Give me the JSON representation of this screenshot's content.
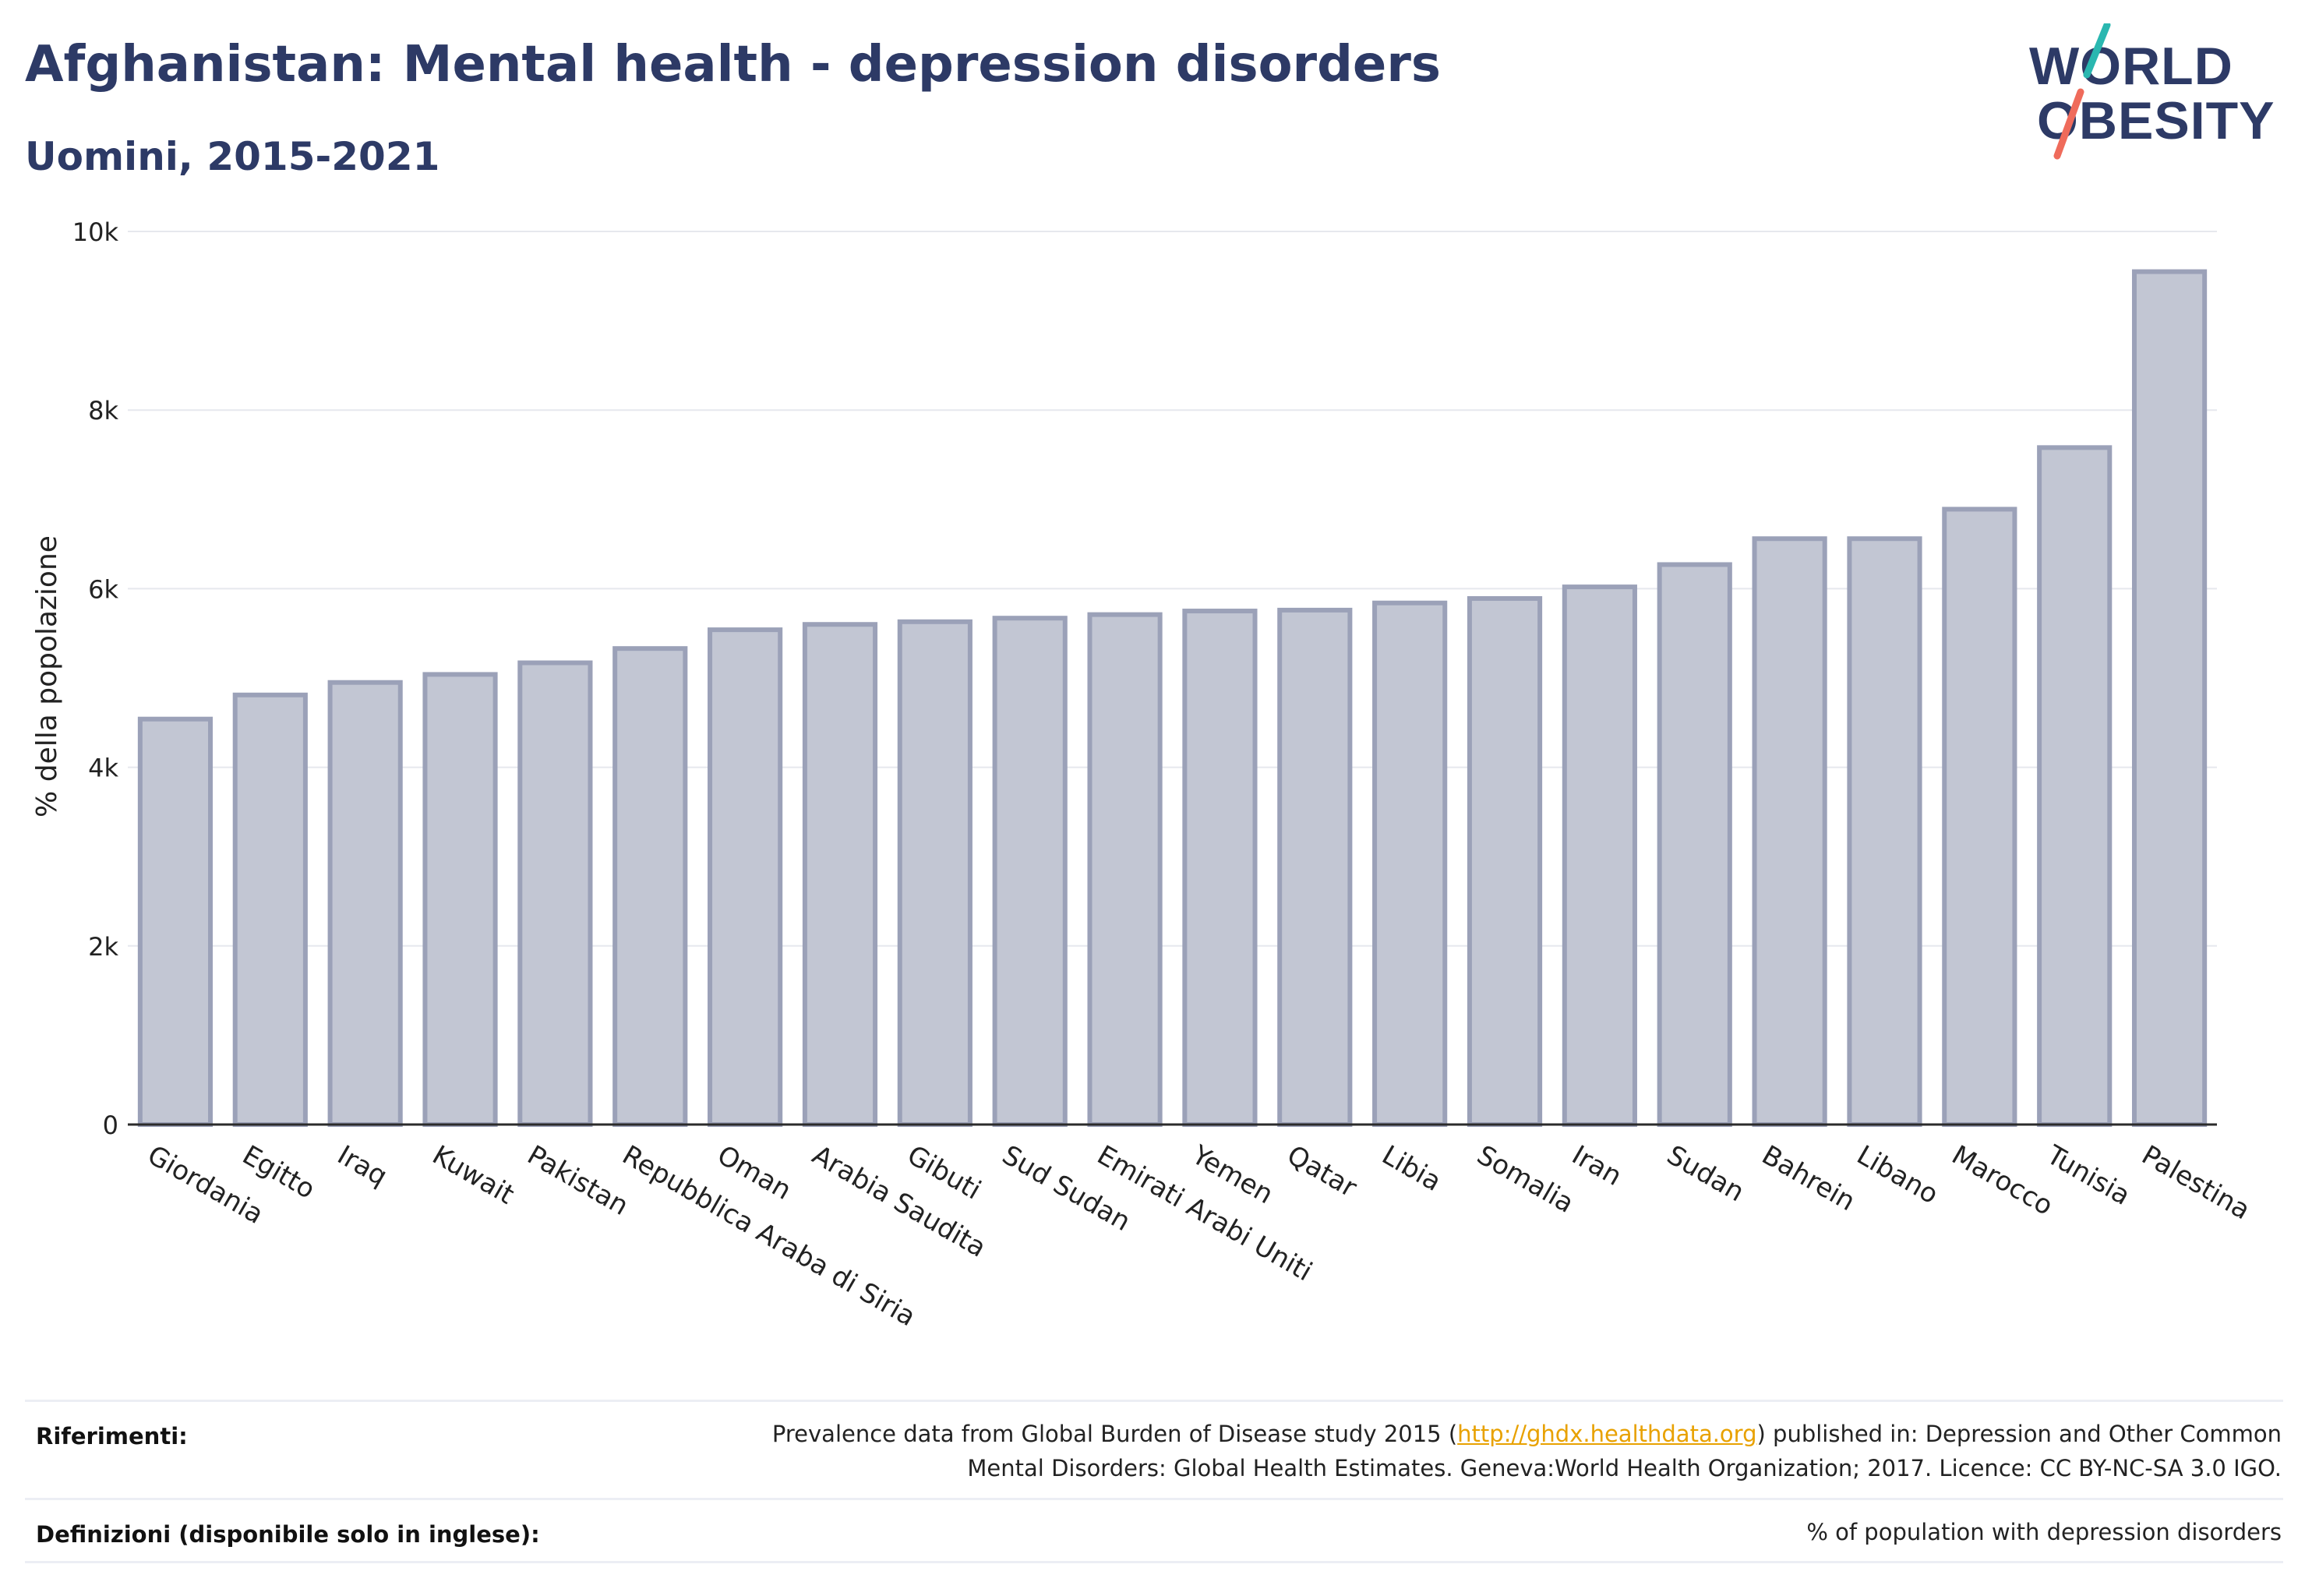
{
  "title": "Afghanistan: Mental health - depression disorders",
  "subtitle": "Uomini, 2015-2021",
  "logo": {
    "line1": "WORLD",
    "line2": "OBESITY"
  },
  "chart_data": {
    "type": "bar",
    "ylabel": "% della popolazione",
    "ylim": [
      0,
      10000
    ],
    "yticks": [
      {
        "value": 0,
        "label": "0"
      },
      {
        "value": 2000,
        "label": "2k"
      },
      {
        "value": 4000,
        "label": "4k"
      },
      {
        "value": 6000,
        "label": "6k"
      },
      {
        "value": 8000,
        "label": "8k"
      },
      {
        "value": 10000,
        "label": "10k"
      }
    ],
    "grid": true,
    "bar_color": "#c2c6d3",
    "bar_edge_color": "#9ba1b8",
    "categories": [
      "Giordania",
      "Egitto",
      "Iraq",
      "Kuwait",
      "Pakistan",
      "Repubblica Araba di Siria",
      "Oman",
      "Arabia Saudita",
      "Gibuti",
      "Sud Sudan",
      "Emirati Arabi Uniti",
      "Yemen",
      "Qatar",
      "Libia",
      "Somalia",
      "Iran",
      "Sudan",
      "Bahrein",
      "Libano",
      "Marocco",
      "Tunisia",
      "Palestina"
    ],
    "values": [
      4540,
      4810,
      4950,
      5040,
      5170,
      5330,
      5540,
      5600,
      5630,
      5670,
      5710,
      5750,
      5760,
      5840,
      5890,
      6020,
      6270,
      6560,
      6560,
      6890,
      7580,
      9550
    ]
  },
  "footer": {
    "references_label": "Riferimenti:",
    "references_pre": "Prevalence data from Global Burden of Disease study 2015 (",
    "references_link": "http://ghdx.healthdata.org",
    "references_post": ") published in: Depression and Other Common",
    "references_line2": "Mental Disorders: Global Health Estimates. Geneva:World Health Organization; 2017. Licence: CC BY-NC-SA 3.0 IGO.",
    "definitions_label": "Definizioni (disponibile solo in inglese):",
    "definitions_text": "% of population with depression disorders"
  }
}
